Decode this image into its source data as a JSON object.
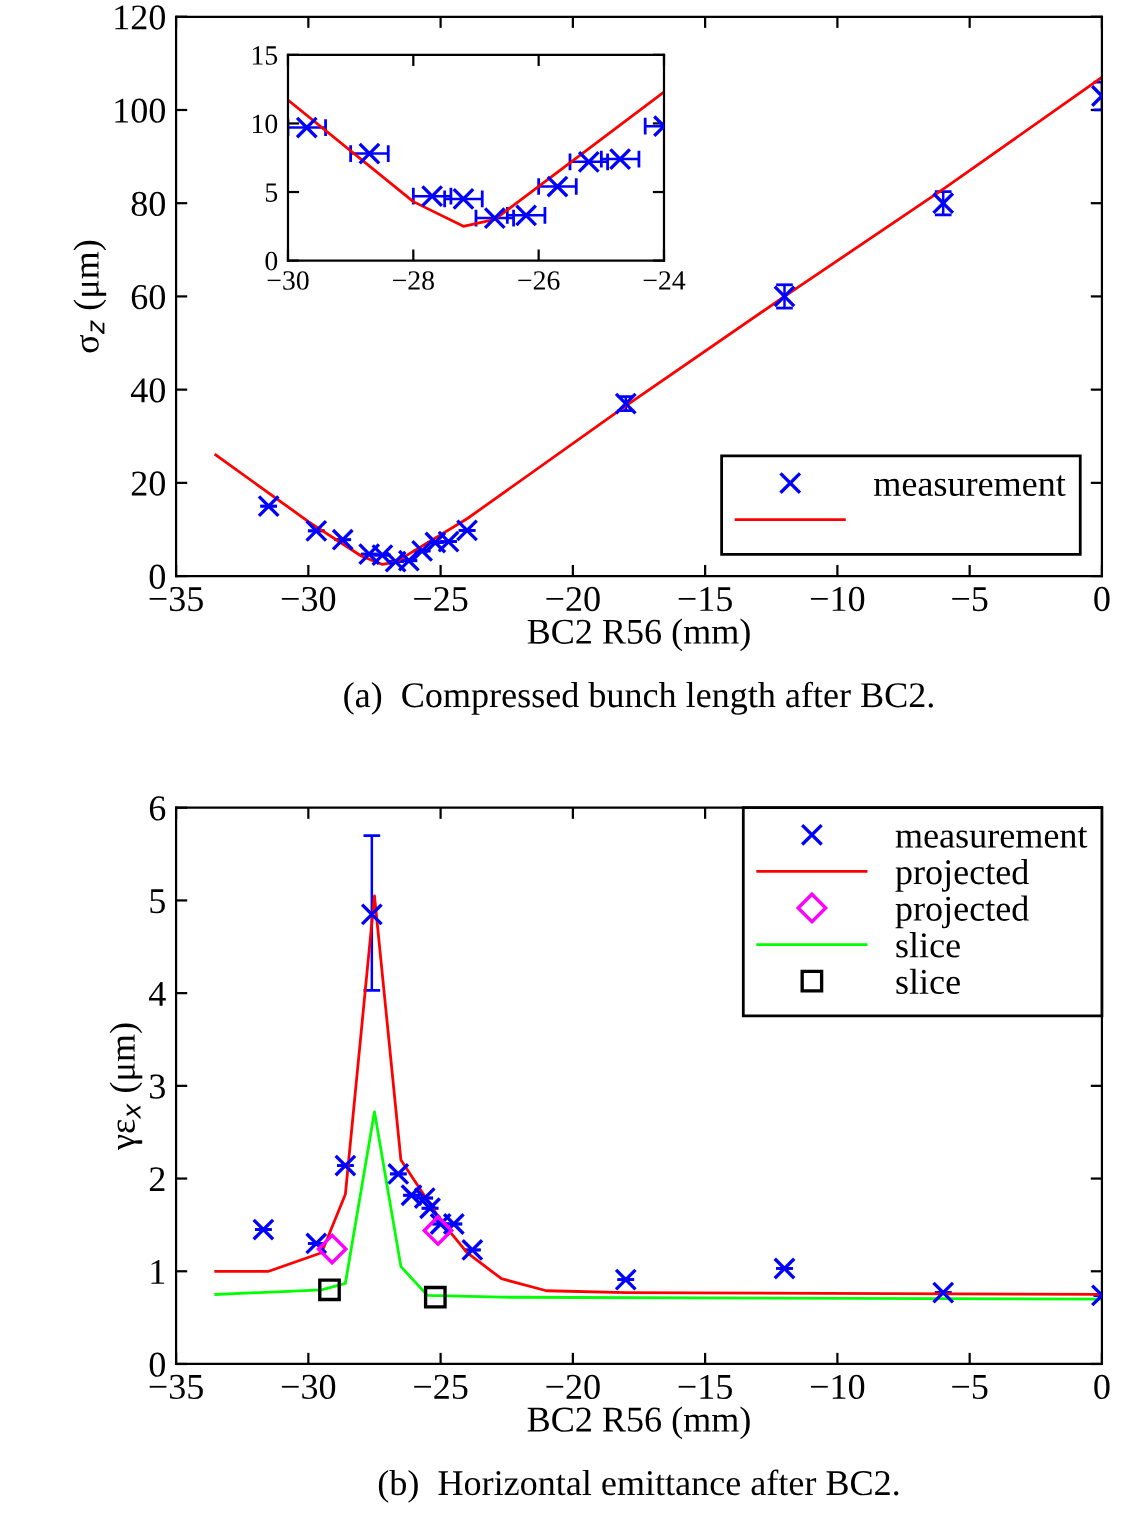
{
  "chart_data": [
    {
      "type": "scatter",
      "xlabel": "BC2 R56 (mm)",
      "ylabel": "σ$_{z}$ (μm)",
      "annotations": [
        "(a)  Compressed bunch length after BC2."
      ],
      "xlim": [
        -35,
        0
      ],
      "ylim": [
        0,
        120
      ],
      "xticks": [
        -35,
        -30,
        -25,
        -20,
        -15,
        -10,
        -5,
        0
      ],
      "yticks": [
        0,
        20,
        40,
        60,
        80,
        100,
        120
      ],
      "legend": "bottom right",
      "grid": false,
      "series": [
        {
          "name": "measurement",
          "marker": "cross",
          "color": "#0000ff",
          "x": [
            -31.5,
            -29.7,
            -28.7,
            -27.7,
            -27.2,
            -26.7,
            -26.2,
            -25.7,
            -25.2,
            -24.7,
            -24.0,
            -18,
            -12,
            -6,
            0
          ],
          "values": [
            15,
            9.7,
            7.8,
            4.7,
            4.5,
            3.1,
            3.3,
            5.4,
            7.2,
            7.4,
            9.8,
            37,
            60,
            80,
            103
          ],
          "errors": [
            null,
            null,
            null,
            null,
            null,
            null,
            null,
            null,
            null,
            null,
            null,
            1.5,
            2.5,
            2.5,
            3
          ]
        },
        {
          "type": "line",
          "marker": "none",
          "line_style": "solid",
          "color": "#ff0000",
          "x": [
            -33.5,
            -30,
            -28,
            -27.2,
            -26.7,
            -24,
            -18,
            -12,
            -6,
            0
          ],
          "values": [
            26,
            11.7,
            4.3,
            2.5,
            3.0,
            12.3,
            36.5,
            60,
            83,
            107
          ]
        }
      ]
    },
    {
      "type": "scatter",
      "xlim": [
        -30,
        -24
      ],
      "ylim": [
        0,
        15
      ],
      "xticks": [
        -30,
        -28,
        -26,
        -24
      ],
      "yticks": [
        0,
        5,
        10,
        15
      ],
      "grid": false,
      "series": [
        {
          "marker": "cross",
          "color": "#0000ff",
          "x": [
            -29.7,
            -28.7,
            -27.7,
            -27.2,
            -26.7,
            -26.2,
            -25.7,
            -25.2,
            -24.7,
            -24.0
          ],
          "values": [
            9.7,
            7.8,
            4.7,
            4.5,
            3.1,
            3.3,
            5.4,
            7.2,
            7.4,
            9.8
          ],
          "xerrors": [
            0.3,
            0.3,
            0.3,
            0.3,
            0.3,
            0.3,
            0.3,
            0.3,
            0.3,
            0.3
          ]
        },
        {
          "type": "line",
          "marker": "none",
          "line_style": "solid",
          "color": "#ff0000",
          "x": [
            -30,
            -28,
            -27.2,
            -26.7,
            -24
          ],
          "values": [
            11.7,
            4.3,
            2.5,
            3.0,
            12.3
          ]
        }
      ]
    },
    {
      "type": "scatter",
      "xlabel": "BC2 R56 (mm)",
      "ylabel": "γε$_{x}$ (μm)",
      "annotations": [
        "(b)  Horizontal emittance after BC2."
      ],
      "xlim": [
        -35,
        0
      ],
      "ylim": [
        0,
        6
      ],
      "xticks": [
        -35,
        -30,
        -25,
        -20,
        -15,
        -10,
        -5,
        0
      ],
      "yticks": [
        0,
        1,
        2,
        3,
        4,
        5,
        6
      ],
      "legend": "top right",
      "grid": false,
      "series": [
        {
          "name": "measurement",
          "marker": "cross",
          "color": "#0000ff",
          "x": [
            -31.7,
            -29.7,
            -28.6,
            -27.6,
            -26.6,
            -26.1,
            -25.6,
            -25.4,
            -25.0,
            -24.5,
            -23.8,
            -18,
            -12,
            -6,
            0
          ],
          "values": [
            1.45,
            1.3,
            2.14,
            4.85,
            2.05,
            1.82,
            1.79,
            1.68,
            1.51,
            1.51,
            1.23,
            0.91,
            1.03,
            0.77,
            0.74
          ],
          "errors": [
            null,
            null,
            null,
            [
              4.03,
              5.7
            ],
            null,
            null,
            null,
            null,
            null,
            null,
            null,
            null,
            null,
            null,
            null
          ]
        },
        {
          "name": "projected",
          "type": "line",
          "marker": "none",
          "line_style": "solid",
          "color": "#ff0000",
          "x": [
            -33.5,
            -31.5,
            -29.5,
            -28.6,
            -27.5,
            -26.5,
            -25,
            -24,
            -22.7,
            -21,
            -18,
            0
          ],
          "values": [
            1.0,
            1.0,
            1.2,
            1.83,
            5.05,
            2.2,
            1.55,
            1.2,
            0.92,
            0.79,
            0.77,
            0.75
          ]
        },
        {
          "name": "projected",
          "marker": "diamond",
          "color": "#ff00ff",
          "x": [
            -29.1,
            -25.1
          ],
          "values": [
            1.24,
            1.44
          ]
        },
        {
          "name": "slice",
          "type": "line",
          "marker": "none",
          "line_style": "solid",
          "color": "#00ff00",
          "x": [
            -33.5,
            -29.5,
            -28.6,
            -27.5,
            -26.5,
            -25.5,
            -22.7,
            0
          ],
          "values": [
            0.75,
            0.8,
            0.87,
            2.72,
            1.05,
            0.74,
            0.72,
            0.7
          ]
        },
        {
          "name": "slice",
          "marker": "square",
          "color": "#000000",
          "x": [
            -29.2,
            -25.2
          ],
          "values": [
            0.8,
            0.72
          ]
        }
      ]
    }
  ]
}
